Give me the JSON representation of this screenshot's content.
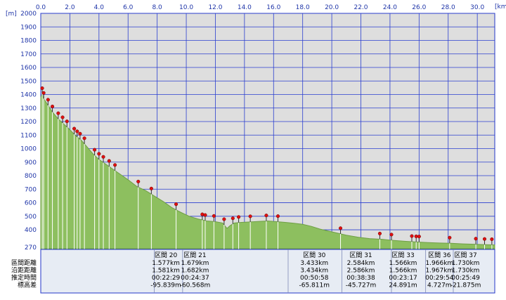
{
  "chart_data": {
    "type": "area",
    "xunit_label": "[km]",
    "yunit_label": "[m]",
    "xlim": [
      0,
      31.2
    ],
    "ylim": [
      260,
      2000
    ],
    "xticks": [
      "0.0",
      "2.0",
      "4.0",
      "6.0",
      "8.0",
      "10.0",
      "12.0",
      "14.0",
      "16.0",
      "18.0",
      "20.0",
      "22.0",
      "24.0",
      "26.0",
      "28.0",
      "30.0"
    ],
    "yticks": [
      "2000",
      "1900",
      "1800",
      "1700",
      "1600",
      "1500",
      "1400",
      "1300",
      "1200",
      "1100",
      "1000",
      "900",
      "800",
      "700",
      "600",
      "500",
      "400",
      "270"
    ],
    "grid": true,
    "profile_color": "#8dbf5f",
    "profile": {
      "x": [
        0,
        0.1,
        0.2,
        0.5,
        0.8,
        1.2,
        1.6,
        2.0,
        2.4,
        2.8,
        3.2,
        3.6,
        4.0,
        4.4,
        4.8,
        5.2,
        5.6,
        6.0,
        6.6,
        7.2,
        7.8,
        8.4,
        9.0,
        9.6,
        10.2,
        10.8,
        11.4,
        12.0,
        12.5,
        12.8,
        13.0,
        13.3,
        13.8,
        14.4,
        15.0,
        15.6,
        16.2,
        16.8,
        17.4,
        18.0,
        18.6,
        19.2,
        19.8,
        20.4,
        21.0,
        21.8,
        22.6,
        23.4,
        24.2,
        25.0,
        25.8,
        26.6,
        27.4,
        28.2,
        29.0,
        29.8,
        30.6,
        31.2
      ],
      "y": [
        1380,
        1405,
        1370,
        1320,
        1270,
        1220,
        1180,
        1140,
        1095,
        1060,
        1010,
        960,
        920,
        890,
        860,
        830,
        800,
        770,
        720,
        690,
        650,
        610,
        565,
        530,
        500,
        480,
        465,
        460,
        450,
        410,
        430,
        450,
        455,
        458,
        462,
        465,
        460,
        455,
        448,
        440,
        425,
        405,
        390,
        375,
        360,
        345,
        335,
        330,
        322,
        315,
        310,
        305,
        302,
        300,
        296,
        293,
        290,
        288
      ]
    },
    "waypoints_x": [
      0.1,
      0.2,
      0.5,
      0.8,
      1.2,
      1.5,
      1.8,
      2.3,
      2.5,
      2.7,
      3.0,
      3.7,
      4.0,
      4.3,
      4.7,
      5.1,
      6.7,
      7.6,
      9.3,
      11.1,
      11.3,
      11.9,
      12.6,
      13.2,
      13.6,
      14.4,
      15.5,
      16.3,
      20.6,
      23.3,
      24.1,
      25.5,
      25.8,
      26.0,
      28.1,
      29.9,
      30.5,
      31.0
    ],
    "stats": {
      "row_labels": [
        "區間距離",
        "沿距距離",
        "推定時間",
        "標高差"
      ],
      "sections": [
        {
          "label": "区間 20",
          "values": [
            "1.577km",
            "1.581km",
            "00:22:29",
            "-95.839m"
          ]
        },
        {
          "label": "区間 21",
          "values": [
            "1.679km",
            "1.682km",
            "00:24:37",
            "-60.568m"
          ]
        },
        {
          "label": "区間 30",
          "values": [
            "3.433km",
            "3.434km",
            "00:50:58",
            "-65.811m"
          ]
        },
        {
          "label": "区間 31",
          "values": [
            "2.584km",
            "2.586km",
            "00:38:38",
            "-45.727m"
          ]
        },
        {
          "label": "区間 33",
          "values": [
            "1.566km",
            "1.566km",
            "00:23:17",
            "24.891m"
          ]
        },
        {
          "label": "区間 36",
          "values": [
            "1.966km",
            "1.967km",
            "00:29:54",
            "4.727m"
          ]
        },
        {
          "label": "区間 37",
          "values": [
            "1.730km",
            "1.730km",
            "00:25:49",
            "-21.875m"
          ]
        }
      ]
    }
  }
}
